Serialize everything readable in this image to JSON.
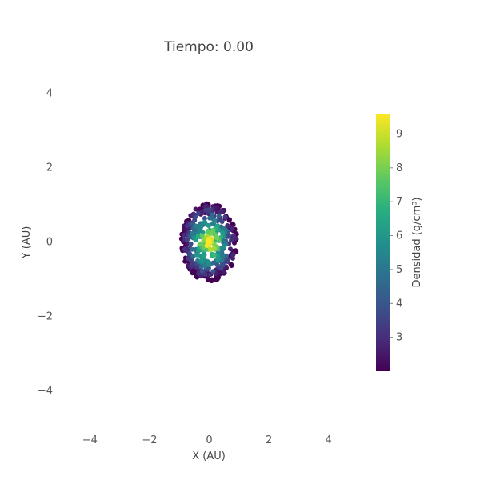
{
  "chart_data": {
    "type": "scatter",
    "title": "Tiempo: 0.00",
    "xlabel": "X (AU)",
    "ylabel": "Y (AU)",
    "xlim": [
      -5,
      5
    ],
    "ylim": [
      -5,
      5
    ],
    "x_ticks": [
      -4,
      -2,
      0,
      2,
      4
    ],
    "y_ticks": [
      -4,
      -2,
      0,
      2,
      4
    ],
    "x_tick_labels": [
      "−4",
      "−2",
      "0",
      "2",
      "4"
    ],
    "y_tick_labels": [
      "−4",
      "−2",
      "0",
      "2",
      "4"
    ],
    "grid": false,
    "colorbar": {
      "title": "Densidad (g/cm³)",
      "range": [
        2,
        9.6
      ],
      "ticks": [
        3,
        4,
        5,
        6,
        7,
        8,
        9
      ],
      "tick_labels": [
        "3",
        "4",
        "5",
        "6",
        "7",
        "8",
        "9"
      ],
      "colorscale": "viridis"
    },
    "cloud": {
      "center": [
        0,
        0
      ],
      "radius_x": 0.95,
      "radius_y": 1.05,
      "n_points": 420,
      "density_range": [
        2,
        9.6
      ]
    }
  }
}
